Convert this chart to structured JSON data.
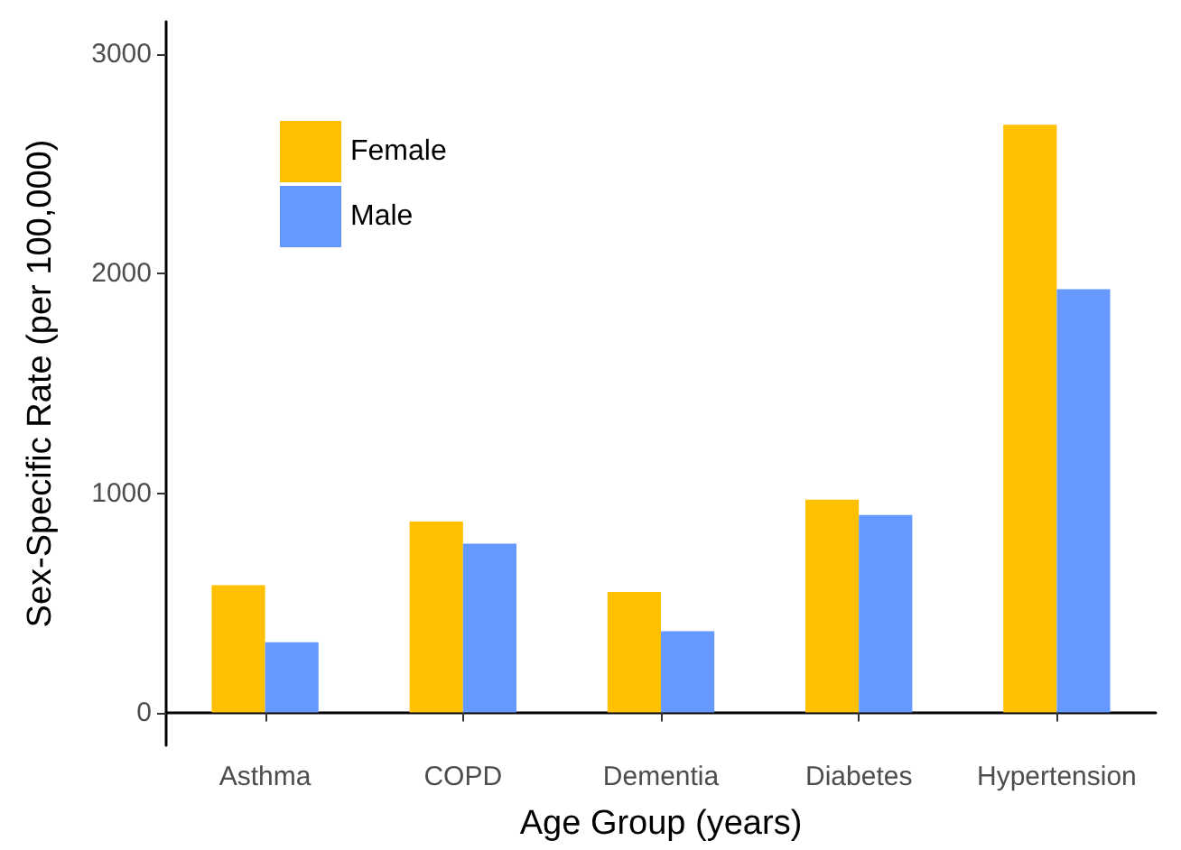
{
  "chart_data": {
    "type": "bar",
    "xlabel": "Age Group (years)",
    "ylabel": "Sex-Specific Rate (per 100,000)",
    "categories": [
      "Asthma",
      "COPD",
      "Dementia",
      "Diabetes",
      "Hypertension"
    ],
    "series": [
      {
        "name": "Female",
        "color": "#ffc000",
        "values": [
          580,
          870,
          550,
          970,
          2680
        ]
      },
      {
        "name": "Male",
        "color": "#6699ff",
        "values": [
          320,
          770,
          370,
          900,
          1930
        ]
      }
    ],
    "ylim": [
      -150,
      3150
    ],
    "yticks": [
      0,
      1000,
      2000,
      3000
    ],
    "grid": false,
    "legend": "top left"
  }
}
